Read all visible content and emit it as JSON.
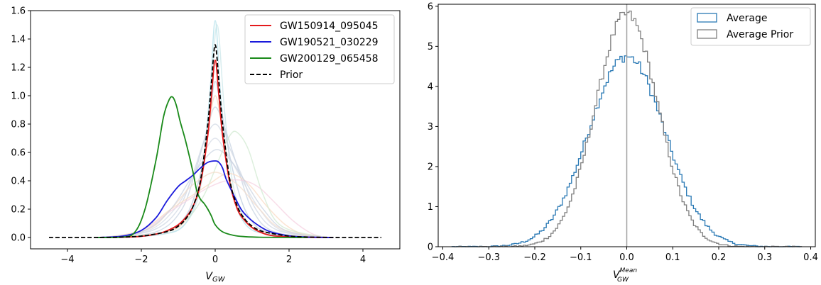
{
  "chart_data": [
    {
      "type": "line",
      "title": "",
      "xlabel_main": "V",
      "xlabel_sub": "GW",
      "ylabel": "",
      "xlim": [
        -5.0,
        5.0
      ],
      "ylim": [
        -0.08,
        1.6
      ],
      "xticks": [
        -4,
        -2,
        0,
        2,
        4
      ],
      "xtick_labels": [
        "−4",
        "−2",
        "0",
        "2",
        "4"
      ],
      "yticks": [
        0.0,
        0.2,
        0.4,
        0.6,
        0.8,
        1.0,
        1.2,
        1.4,
        1.6
      ],
      "ytick_labels": [
        "0.0",
        "0.2",
        "0.4",
        "0.6",
        "0.8",
        "1.0",
        "1.2",
        "1.4",
        "1.6"
      ],
      "grid": false,
      "legend_position": "top-right",
      "series": [
        {
          "name": "GW150914_095045",
          "color": "#e41a1c",
          "style": "solid",
          "x": [
            -3.2,
            -2.5,
            -2.0,
            -1.5,
            -1.2,
            -1.0,
            -0.8,
            -0.6,
            -0.4,
            -0.2,
            -0.1,
            0.0,
            0.1,
            0.2,
            0.4,
            0.6,
            0.8,
            1.0,
            1.2,
            1.5,
            2.0,
            2.5,
            3.2
          ],
          "y": [
            0.0,
            0.002,
            0.008,
            0.03,
            0.06,
            0.09,
            0.14,
            0.22,
            0.38,
            0.72,
            1.0,
            1.25,
            1.0,
            0.72,
            0.38,
            0.2,
            0.12,
            0.07,
            0.04,
            0.015,
            0.004,
            0.001,
            0.0
          ]
        },
        {
          "name": "GW190521_030229",
          "color": "#1a1adb",
          "style": "solid",
          "x": [
            -3.2,
            -2.5,
            -2.0,
            -1.6,
            -1.3,
            -1.0,
            -0.8,
            -0.6,
            -0.4,
            -0.2,
            0.0,
            0.1,
            0.2,
            0.3,
            0.5,
            0.7,
            0.9,
            1.2,
            1.5,
            2.0,
            2.5,
            3.2
          ],
          "y": [
            0.0,
            0.01,
            0.05,
            0.14,
            0.26,
            0.36,
            0.4,
            0.44,
            0.49,
            0.53,
            0.54,
            0.53,
            0.49,
            0.41,
            0.3,
            0.2,
            0.14,
            0.08,
            0.04,
            0.012,
            0.003,
            0.0
          ]
        },
        {
          "name": "GW200129_065458",
          "color": "#1a8a1a",
          "style": "solid",
          "x": [
            -3.2,
            -2.6,
            -2.2,
            -1.9,
            -1.6,
            -1.4,
            -1.25,
            -1.15,
            -1.05,
            -0.95,
            -0.8,
            -0.6,
            -0.5,
            -0.4,
            -0.3,
            -0.2,
            -0.1,
            0.0,
            0.2,
            0.5,
            0.8,
            1.2,
            1.6,
            2.0,
            2.5
          ],
          "y": [
            0.0,
            0.002,
            0.03,
            0.2,
            0.55,
            0.85,
            0.97,
            0.99,
            0.93,
            0.82,
            0.68,
            0.46,
            0.33,
            0.27,
            0.24,
            0.2,
            0.15,
            0.09,
            0.04,
            0.015,
            0.006,
            0.002,
            0.001,
            0.0,
            0.0
          ]
        },
        {
          "name": "Prior",
          "color": "#000000",
          "style": "dashed",
          "x": [
            -4.5,
            -3.5,
            -3.0,
            -2.5,
            -2.0,
            -1.5,
            -1.2,
            -1.0,
            -0.8,
            -0.6,
            -0.4,
            -0.2,
            -0.1,
            0.0,
            0.1,
            0.2,
            0.4,
            0.6,
            0.8,
            1.0,
            1.2,
            1.5,
            2.0,
            2.5,
            3.0,
            3.5,
            4.5
          ],
          "y": [
            0.0,
            0.0,
            0.001,
            0.003,
            0.01,
            0.03,
            0.05,
            0.08,
            0.13,
            0.22,
            0.4,
            0.8,
            1.1,
            1.36,
            1.1,
            0.8,
            0.4,
            0.22,
            0.13,
            0.08,
            0.05,
            0.03,
            0.01,
            0.003,
            0.001,
            0.0,
            0.0
          ]
        }
      ],
      "background_series": [
        {
          "color": "#aadde8",
          "x": [
            -3.0,
            -1.5,
            -0.8,
            -0.4,
            -0.15,
            0.0,
            0.15,
            0.4,
            0.8,
            1.5,
            3.0
          ],
          "y": [
            0.0,
            0.02,
            0.1,
            0.4,
            1.0,
            1.53,
            1.0,
            0.4,
            0.1,
            0.02,
            0.0
          ]
        },
        {
          "color": "#c8e6e8",
          "x": [
            -3.0,
            -1.5,
            -0.8,
            -0.4,
            -0.15,
            0.05,
            0.25,
            0.5,
            0.9,
            1.5,
            3.0
          ],
          "y": [
            0.0,
            0.02,
            0.1,
            0.35,
            0.9,
            1.5,
            0.9,
            0.35,
            0.1,
            0.02,
            0.0
          ]
        },
        {
          "color": "#b9c9dc",
          "x": [
            -3.0,
            -1.5,
            -0.8,
            -0.4,
            -0.15,
            0.0,
            0.2,
            0.5,
            0.9,
            1.5,
            3.0
          ],
          "y": [
            0.0,
            0.03,
            0.15,
            0.45,
            0.85,
            1.1,
            0.85,
            0.45,
            0.15,
            0.03,
            0.0
          ]
        },
        {
          "color": "#c4d0e0",
          "x": [
            -3.0,
            -1.6,
            -0.9,
            -0.5,
            -0.2,
            0.0,
            0.25,
            0.6,
            1.0,
            1.6,
            3.0
          ],
          "y": [
            0.0,
            0.04,
            0.2,
            0.5,
            0.78,
            0.92,
            0.78,
            0.5,
            0.2,
            0.04,
            0.0
          ]
        },
        {
          "color": "#cdd5e2",
          "x": [
            -3.0,
            -1.7,
            -1.0,
            -0.6,
            -0.3,
            0.0,
            0.3,
            0.7,
            1.1,
            1.7,
            3.0
          ],
          "y": [
            0.0,
            0.05,
            0.2,
            0.45,
            0.68,
            0.8,
            0.68,
            0.45,
            0.2,
            0.05,
            0.0
          ]
        },
        {
          "color": "#d4dae6",
          "x": [
            -3.0,
            -1.8,
            -1.1,
            -0.6,
            -0.3,
            0.0,
            0.3,
            0.7,
            1.2,
            1.8,
            3.0
          ],
          "y": [
            0.0,
            0.05,
            0.2,
            0.42,
            0.6,
            0.7,
            0.6,
            0.42,
            0.2,
            0.05,
            0.0
          ]
        },
        {
          "color": "#f7d1b3",
          "x": [
            -3.0,
            -1.5,
            -0.8,
            -0.4,
            -0.2,
            0.0,
            0.2,
            0.4,
            0.8,
            1.5,
            3.0
          ],
          "y": [
            0.0,
            0.03,
            0.12,
            0.4,
            0.75,
            1.0,
            0.75,
            0.4,
            0.12,
            0.03,
            0.0
          ]
        },
        {
          "color": "#f9d9c0",
          "x": [
            -3.0,
            -2.0,
            -1.2,
            -0.6,
            -0.2,
            0.3,
            0.7,
            1.0,
            1.4,
            1.9,
            2.4,
            3.0
          ],
          "y": [
            0.0,
            0.05,
            0.2,
            0.3,
            0.37,
            0.45,
            0.42,
            0.35,
            0.22,
            0.09,
            0.02,
            0.0
          ]
        },
        {
          "color": "#f5cfe0",
          "x": [
            -3.0,
            -2.0,
            -1.3,
            -0.7,
            -0.2,
            0.3,
            0.8,
            1.2,
            1.6,
            2.1,
            2.6,
            3.0
          ],
          "y": [
            0.0,
            0.04,
            0.17,
            0.27,
            0.35,
            0.4,
            0.4,
            0.35,
            0.25,
            0.12,
            0.03,
            0.0
          ]
        },
        {
          "color": "#cfe8cf",
          "x": [
            -3.0,
            -1.5,
            -0.8,
            -0.3,
            0.1,
            0.4,
            0.6,
            0.9,
            1.3,
            1.8,
            3.0
          ],
          "y": [
            0.0,
            0.03,
            0.12,
            0.3,
            0.55,
            0.72,
            0.74,
            0.62,
            0.3,
            0.08,
            0.0
          ]
        },
        {
          "color": "#f3dcc9",
          "x": [
            -3.0,
            -1.8,
            -1.2,
            -0.7,
            -0.3,
            0.0,
            0.3,
            0.7,
            1.2,
            1.8,
            3.0
          ],
          "y": [
            0.0,
            0.06,
            0.2,
            0.35,
            0.43,
            0.46,
            0.43,
            0.35,
            0.2,
            0.06,
            0.0
          ]
        },
        {
          "color": "#c8d2e0",
          "x": [
            -3.0,
            -1.9,
            -1.2,
            -0.7,
            -0.3,
            0.05,
            0.4,
            0.8,
            1.3,
            1.9,
            3.0
          ],
          "y": [
            0.0,
            0.05,
            0.2,
            0.4,
            0.55,
            0.62,
            0.55,
            0.4,
            0.2,
            0.05,
            0.0
          ]
        }
      ]
    },
    {
      "type": "histogram",
      "title": "",
      "xlabel_main": "V",
      "xlabel_sub": "GW",
      "xlabel_sup": "Mean",
      "ylabel": "",
      "xlim": [
        -0.41,
        0.41
      ],
      "ylim": [
        0,
        6.05
      ],
      "xticks": [
        -0.4,
        -0.3,
        -0.2,
        -0.1,
        0.0,
        0.1,
        0.2,
        0.3,
        0.4
      ],
      "xtick_labels": [
        "−0.4",
        "−0.3",
        "−0.2",
        "−0.1",
        "0.0",
        "0.1",
        "0.2",
        "0.3",
        "0.4"
      ],
      "yticks": [
        0,
        1,
        2,
        3,
        4,
        5,
        6
      ],
      "ytick_labels": [
        "0",
        "1",
        "2",
        "3",
        "4",
        "5",
        "6"
      ],
      "grid": false,
      "legend_position": "top-right",
      "vertical_line_x": 0.0,
      "vertical_line_color": "#a0a0a0",
      "series": [
        {
          "name": "Average",
          "color": "#2878b4",
          "sigma": 0.083,
          "peak": 4.75
        },
        {
          "name": "Average Prior",
          "color": "#7f7f7f",
          "sigma": 0.068,
          "peak": 5.8
        }
      ],
      "bin_edges": [
        -0.38,
        0.38
      ],
      "bin_count": 152
    }
  ]
}
